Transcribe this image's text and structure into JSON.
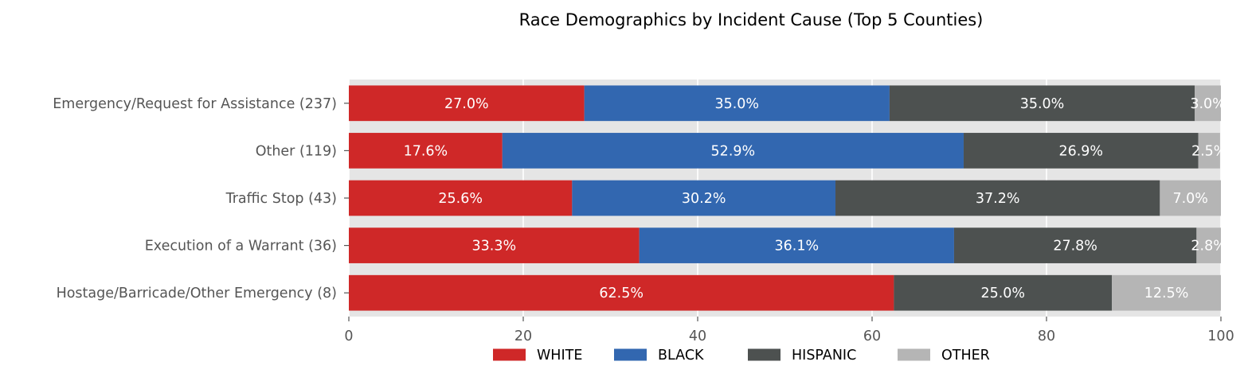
{
  "chart_data": {
    "type": "bar",
    "orientation": "horizontal",
    "stacked": true,
    "title": "Race Demographics by Incident Cause (Top 5 Counties)",
    "xlabel": "",
    "ylabel": "",
    "xlim": [
      0,
      100
    ],
    "x_ticks": [
      0,
      20,
      40,
      60,
      80,
      100
    ],
    "grid": true,
    "legend_position": "bottom-center",
    "categories": [
      "Emergency/Request for Assistance (237)",
      "Other (119)",
      "Traffic Stop (43)",
      "Execution of a Warrant (36)",
      "Hostage/Barricade/Other Emergency (8)"
    ],
    "series": [
      {
        "name": "WHITE",
        "color": "#cf2828",
        "values": [
          27.0,
          17.6,
          25.6,
          33.3,
          62.5
        ],
        "labels": [
          "27.0%",
          "17.6%",
          "25.6%",
          "33.3%",
          "62.5%"
        ]
      },
      {
        "name": "BLACK",
        "color": "#3267b0",
        "values": [
          35.0,
          52.9,
          30.2,
          36.1,
          0
        ],
        "labels": [
          "35.0%",
          "52.9%",
          "30.2%",
          "36.1%",
          ""
        ]
      },
      {
        "name": "HISPANIC",
        "color": "#4d5150",
        "values": [
          35.0,
          26.9,
          37.2,
          27.8,
          25.0
        ],
        "labels": [
          "35.0%",
          "26.9%",
          "37.2%",
          "27.8%",
          "25.0%"
        ]
      },
      {
        "name": "OTHER",
        "color": "#b5b5b5",
        "values": [
          3.0,
          2.5,
          7.0,
          2.8,
          12.5
        ],
        "labels": [
          "3.0%",
          "2.5%",
          "7.0%",
          "2.8%",
          "12.5%"
        ]
      }
    ],
    "colors": {
      "plot_background": "#e5e5e5",
      "grid": "#ffffff"
    }
  }
}
